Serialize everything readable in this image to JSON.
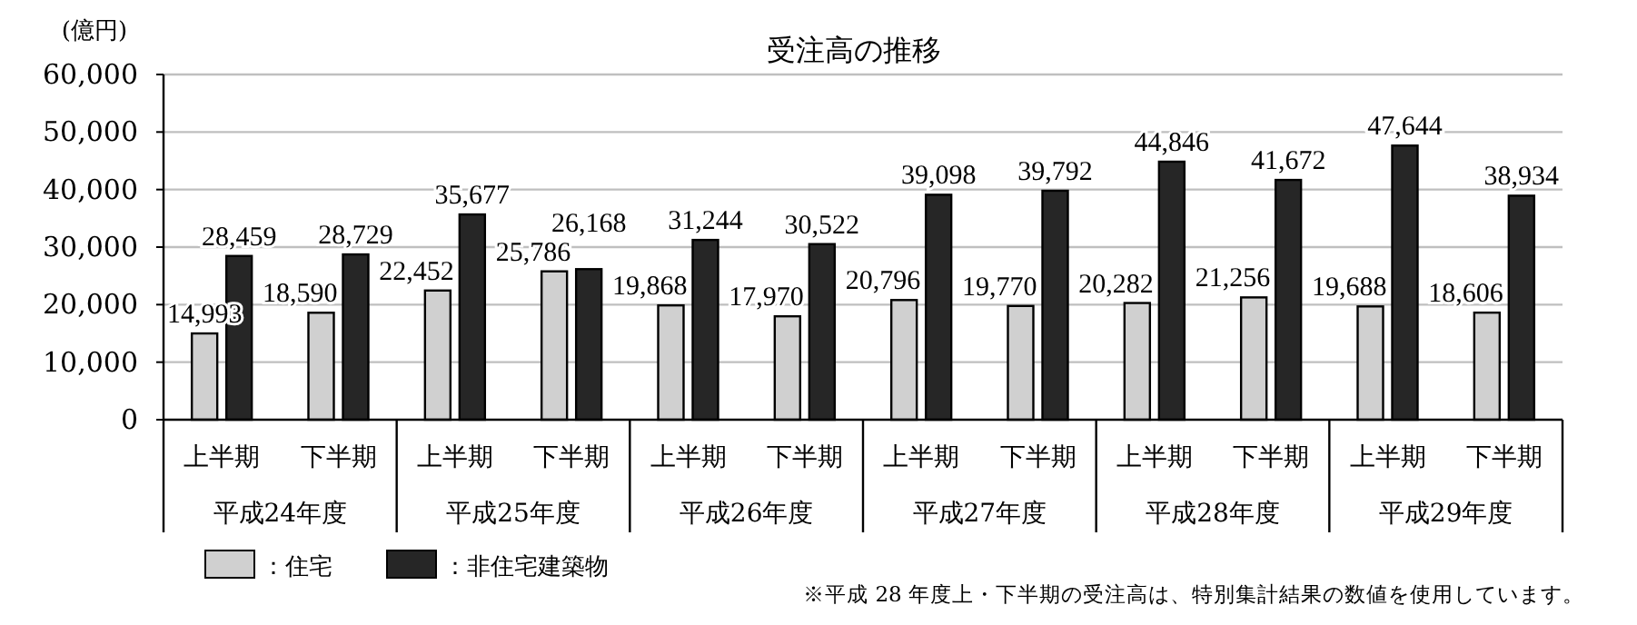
{
  "chart_data": {
    "type": "bar",
    "title": "受注高の推移",
    "ylabel": "(億円)",
    "categories": [
      "上半期",
      "下半期",
      "上半期",
      "下半期",
      "上半期",
      "下半期",
      "上半期",
      "下半期",
      "上半期",
      "下半期",
      "上半期",
      "下半期"
    ],
    "series": [
      {
        "name": "：住宅",
        "color": "#d0d0d0",
        "values": [
          14993,
          18590,
          22452,
          25786,
          19868,
          17970,
          20796,
          19770,
          20282,
          21256,
          19688,
          18606
        ],
        "value_labels": [
          "14,993",
          "18,590",
          "22,452",
          "25,786",
          "19,868",
          "17,970",
          "20,796",
          "19,770",
          "20,282",
          "21,256",
          "19,688",
          "18,606"
        ]
      },
      {
        "name": "：非住宅建築物",
        "color": "#262626",
        "values": [
          28459,
          28729,
          35677,
          26168,
          31244,
          30522,
          39098,
          39792,
          44846,
          41672,
          47644,
          38934
        ],
        "value_labels": [
          "28,459",
          "28,729",
          "35,677",
          "26,168",
          "31,244",
          "30,522",
          "39,098",
          "39,792",
          "44,846",
          "41,672",
          "47,644",
          "38,934"
        ]
      }
    ],
    "ylim": [
      0,
      60000
    ],
    "yticks": [
      {
        "value": 0,
        "label": "0"
      },
      {
        "value": 10000,
        "label": "10,000"
      },
      {
        "value": 20000,
        "label": "20,000"
      },
      {
        "value": 30000,
        "label": "30,000"
      },
      {
        "value": 40000,
        "label": "40,000"
      },
      {
        "value": 50000,
        "label": "50,000"
      },
      {
        "value": 60000,
        "label": "60,000"
      }
    ],
    "grid": "y",
    "legend": "bottom left",
    "annotations": [
      "平成24年度",
      "平成25年度",
      "平成26年度",
      "平成27年度",
      "平成28年度",
      "平成29年度",
      "※平成 28 年度上・下半期の受注高は、特別集計結果の数値を使用しています。"
    ]
  }
}
